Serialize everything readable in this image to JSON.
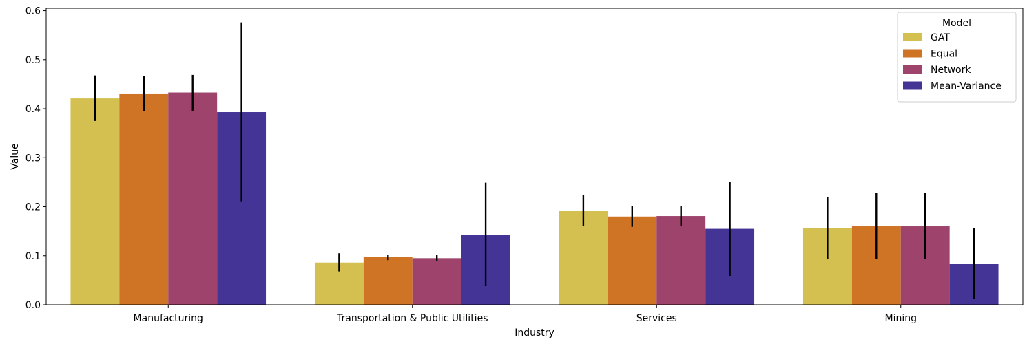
{
  "chart_data": {
    "type": "bar",
    "title": "",
    "xlabel": "Industry",
    "ylabel": "Value",
    "ylim": [
      0,
      0.605
    ],
    "yticks": [
      "0.0",
      "0.1",
      "0.2",
      "0.3",
      "0.4",
      "0.5",
      "0.6"
    ],
    "categories": [
      "Manufacturing",
      "Transportation & Public Utilities",
      "Services",
      "Mining"
    ],
    "legend": {
      "title": "Model",
      "placement": "top-right"
    },
    "grid": false,
    "series": [
      {
        "name": "GAT",
        "color": "#d4c050",
        "values": [
          0.421,
          0.086,
          0.192,
          0.156
        ],
        "err_low": [
          0.375,
          0.068,
          0.16,
          0.093
        ],
        "err_high": [
          0.468,
          0.105,
          0.224,
          0.219
        ]
      },
      {
        "name": "Equal",
        "color": "#cf7325",
        "values": [
          0.431,
          0.097,
          0.18,
          0.16
        ],
        "err_low": [
          0.395,
          0.091,
          0.159,
          0.093
        ],
        "err_high": [
          0.467,
          0.102,
          0.201,
          0.228
        ]
      },
      {
        "name": "Network",
        "color": "#9e436c",
        "values": [
          0.433,
          0.095,
          0.181,
          0.16
        ],
        "err_low": [
          0.396,
          0.09,
          0.16,
          0.093
        ],
        "err_high": [
          0.469,
          0.101,
          0.201,
          0.228
        ]
      },
      {
        "name": "Mean-Variance",
        "color": "#443496",
        "values": [
          0.393,
          0.143,
          0.155,
          0.084
        ],
        "err_low": [
          0.211,
          0.038,
          0.059,
          0.012
        ],
        "err_high": [
          0.576,
          0.249,
          0.251,
          0.156
        ]
      }
    ]
  }
}
